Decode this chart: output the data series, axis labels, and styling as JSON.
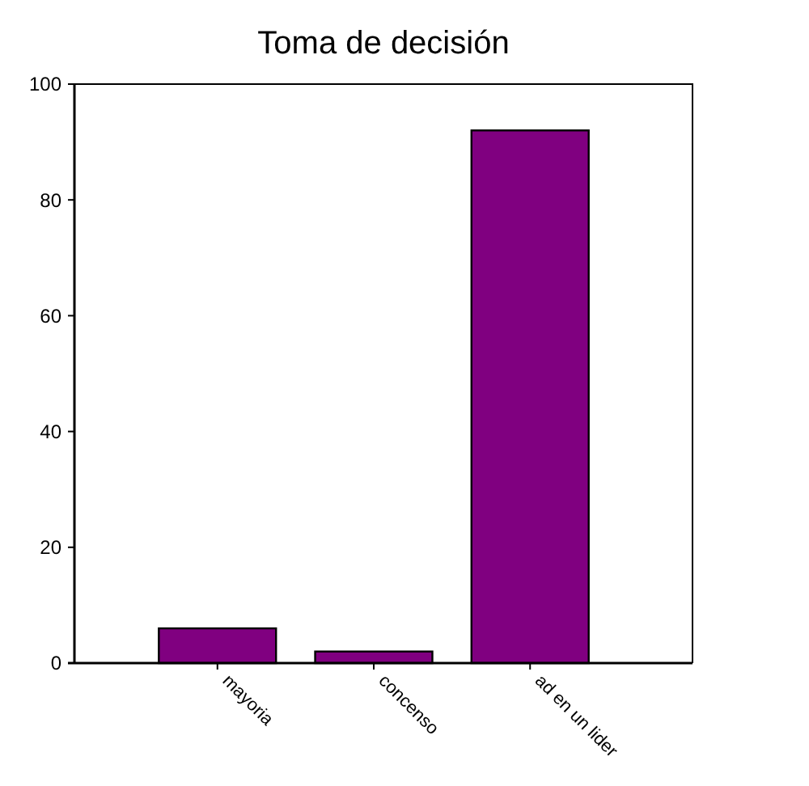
{
  "chart_data": {
    "type": "bar",
    "title": "Toma de decisión",
    "categories": [
      "mayoria",
      "concenso",
      "ad en un lider"
    ],
    "values": [
      6,
      2,
      92
    ],
    "color": "#800080",
    "ylim": [
      0,
      100
    ],
    "yticks": [
      0,
      20,
      40,
      60,
      80,
      100
    ],
    "grid": false
  }
}
